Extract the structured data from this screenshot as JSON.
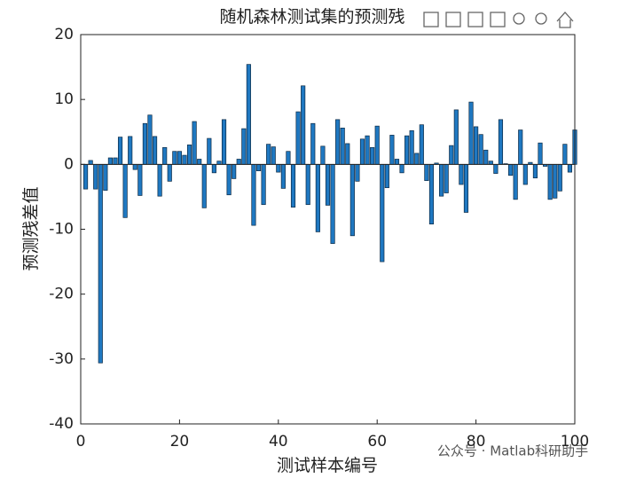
{
  "chart_data": {
    "type": "bar",
    "title": "随机森林测试集的预测残",
    "xlabel": "测试样本编号",
    "ylabel": "预测残差值",
    "x": [
      1,
      2,
      3,
      4,
      5,
      6,
      7,
      8,
      9,
      10,
      11,
      12,
      13,
      14,
      15,
      16,
      17,
      18,
      19,
      20,
      21,
      22,
      23,
      24,
      25,
      26,
      27,
      28,
      29,
      30,
      31,
      32,
      33,
      34,
      35,
      36,
      37,
      38,
      39,
      40,
      41,
      42,
      43,
      44,
      45,
      46,
      47,
      48,
      49,
      50,
      51,
      52,
      53,
      54,
      55,
      56,
      57,
      58,
      59,
      60,
      61,
      62,
      63,
      64,
      65,
      66,
      67,
      68,
      69,
      70,
      71,
      72,
      73,
      74,
      75,
      76,
      77,
      78,
      79,
      80,
      81,
      82,
      83,
      84,
      85,
      86,
      87,
      88,
      89,
      90,
      91,
      92,
      93,
      94,
      95,
      96,
      97,
      98,
      99,
      100
    ],
    "values": [
      -3.8,
      0.6,
      -3.8,
      -30.6,
      -4,
      1,
      1,
      4.2,
      -8.2,
      4.3,
      -0.8,
      -4.8,
      6.3,
      7.6,
      4.3,
      -4.9,
      2.6,
      -2.6,
      2,
      2,
      1.4,
      3,
      6.6,
      0.8,
      -6.7,
      4,
      -1.3,
      0.5,
      6.9,
      -4.7,
      -2.2,
      0.8,
      5.5,
      15.4,
      -9.4,
      -1,
      -6.2,
      3.1,
      2.7,
      -1.2,
      -3.7,
      2,
      -6.6,
      8.1,
      12.1,
      -6.2,
      6.3,
      -10.4,
      2.8,
      -6.3,
      -12.2,
      6.9,
      5.6,
      3.2,
      -11,
      -2.6,
      3.9,
      4.4,
      2.6,
      5.9,
      -15,
      -3.6,
      4.5,
      0.8,
      -1.3,
      4.4,
      5.2,
      1.7,
      6.1,
      -2.5,
      -9.2,
      0.2,
      -4.9,
      -4.4,
      2.9,
      8.4,
      -3.1,
      -7.4,
      9.6,
      5.8,
      4.6,
      2.2,
      0.5,
      -1.4,
      6.9,
      0.1,
      -1.7,
      -5.4,
      5.3,
      -3.1,
      0.3,
      -2.1,
      3.3,
      -0.3,
      -5.4,
      -5.2,
      -4.1,
      3.1,
      -1.2,
      5.3
    ],
    "color": "#1f78c1",
    "xlim": [
      0,
      100
    ],
    "xticks": [
      0,
      20,
      40,
      60,
      80,
      100
    ],
    "ylim": [
      -40,
      20
    ],
    "yticks": [
      -40,
      -30,
      -20,
      -10,
      0,
      10,
      20
    ]
  },
  "watermark": "公众号 · Matlab科研助手"
}
